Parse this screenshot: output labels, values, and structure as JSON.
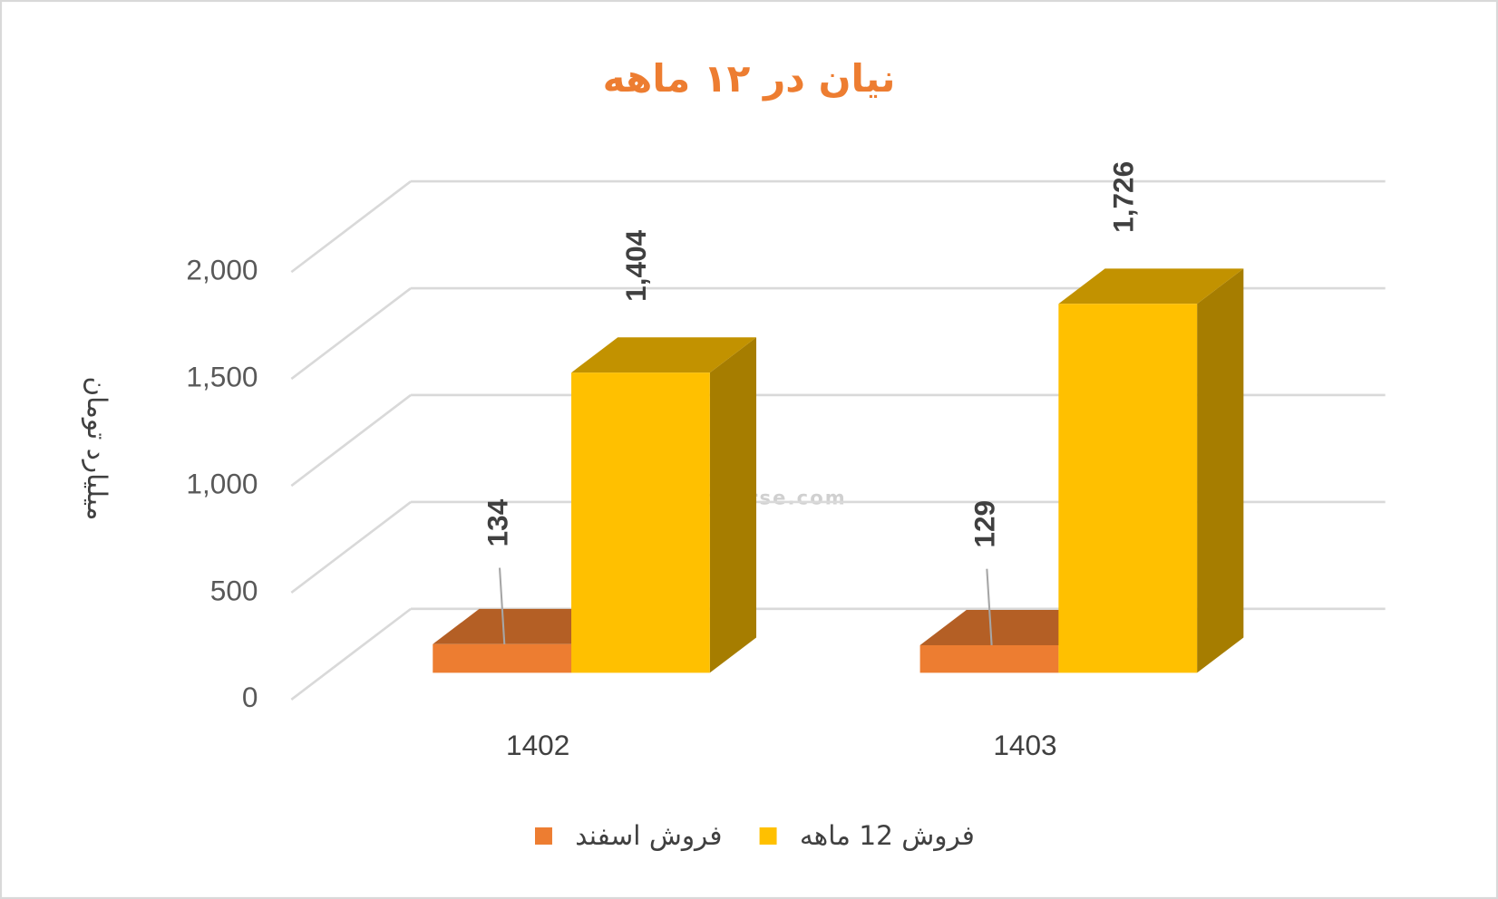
{
  "chart_data": {
    "type": "bar3d",
    "title": "نیان در ۱۲ ماهه",
    "y_label": "میلیارد تومان",
    "watermark": "nabzebourse.com",
    "categories": [
      "1402",
      "1403"
    ],
    "series": [
      {
        "name": "فروش اسفند",
        "color": "#ed7d31",
        "values": [
          134,
          129
        ],
        "value_labels": [
          "134",
          "129"
        ]
      },
      {
        "name": "فروش 12 ماهه",
        "color": "#ffc000",
        "values": [
          1404,
          1726
        ],
        "value_labels": [
          "1,404",
          "1,726"
        ]
      }
    ],
    "ylim": [
      0,
      2000
    ],
    "yticks": [
      0,
      500,
      {
        "value": 1000,
        "label": "1,000"
      },
      {
        "value": 1500,
        "label": "1,500"
      },
      {
        "value": 2000,
        "label": "2,000"
      }
    ],
    "grid": true
  }
}
